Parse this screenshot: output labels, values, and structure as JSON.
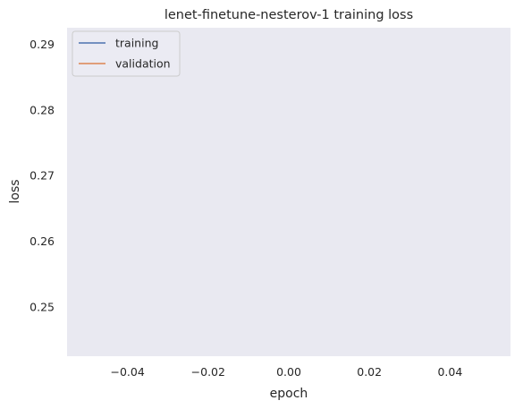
{
  "chart_data": {
    "type": "line",
    "title": "lenet-finetune-nesterov-1 training loss",
    "xlabel": "epoch",
    "ylabel": "loss",
    "xlim": [
      -0.055,
      0.055
    ],
    "ylim": [
      0.2425,
      0.2925
    ],
    "xticks": [
      -0.04,
      -0.02,
      0.0,
      0.02,
      0.04
    ],
    "xtick_labels": [
      "−0.04",
      "−0.02",
      "0.00",
      "0.02",
      "0.04"
    ],
    "yticks": [
      0.25,
      0.26,
      0.27,
      0.28,
      0.29
    ],
    "ytick_labels": [
      "0.25",
      "0.26",
      "0.27",
      "0.28",
      "0.29"
    ],
    "grid": false,
    "legend_position": "top-left",
    "background_color": "#e9e9f1",
    "series": [
      {
        "name": "training",
        "color": "#4c72b0",
        "x": [],
        "y": []
      },
      {
        "name": "validation",
        "color": "#dd8452",
        "x": [],
        "y": []
      }
    ]
  }
}
